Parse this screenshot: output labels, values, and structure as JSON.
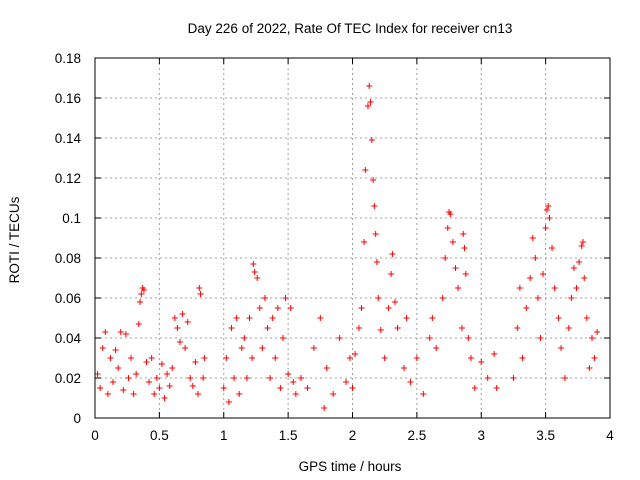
{
  "chart_data": {
    "type": "scatter",
    "title": "Day 226 of 2022, Rate Of TEC Index for receiver cn13",
    "xlabel": "GPS time / hours",
    "ylabel": "ROTI / TECUs",
    "xlim": [
      0,
      4
    ],
    "ylim": [
      0,
      0.18
    ],
    "x_ticks": [
      0,
      0.5,
      1,
      1.5,
      2,
      2.5,
      3,
      3.5,
      4
    ],
    "x_tick_labels": [
      "0",
      "0.5",
      "1",
      "1.5",
      "2",
      "2.5",
      "3",
      "3.5",
      "4"
    ],
    "y_ticks": [
      0,
      0.02,
      0.04,
      0.06,
      0.08,
      0.1,
      0.12,
      0.14,
      0.16,
      0.18
    ],
    "y_tick_labels": [
      "0",
      "0.02",
      "0.04",
      "0.06",
      "0.08",
      "0.1",
      "0.12",
      "0.14",
      "0.16",
      "0.18"
    ],
    "grid": true,
    "marker": "+",
    "color": "#ff0000",
    "series": [
      {
        "name": "ROTI",
        "points": [
          [
            0.02,
            0.022
          ],
          [
            0.04,
            0.015
          ],
          [
            0.06,
            0.035
          ],
          [
            0.08,
            0.043
          ],
          [
            0.1,
            0.012
          ],
          [
            0.12,
            0.03
          ],
          [
            0.14,
            0.018
          ],
          [
            0.16,
            0.034
          ],
          [
            0.18,
            0.025
          ],
          [
            0.2,
            0.043
          ],
          [
            0.22,
            0.014
          ],
          [
            0.24,
            0.042
          ],
          [
            0.26,
            0.02
          ],
          [
            0.28,
            0.03
          ],
          [
            0.3,
            0.012
          ],
          [
            0.32,
            0.022
          ],
          [
            0.34,
            0.047
          ],
          [
            0.35,
            0.058
          ],
          [
            0.36,
            0.062
          ],
          [
            0.37,
            0.065
          ],
          [
            0.38,
            0.064
          ],
          [
            0.4,
            0.028
          ],
          [
            0.42,
            0.018
          ],
          [
            0.44,
            0.03
          ],
          [
            0.46,
            0.012
          ],
          [
            0.48,
            0.02
          ],
          [
            0.5,
            0.015
          ],
          [
            0.52,
            0.027
          ],
          [
            0.54,
            0.01
          ],
          [
            0.56,
            0.022
          ],
          [
            0.58,
            0.016
          ],
          [
            0.6,
            0.025
          ],
          [
            0.62,
            0.05
          ],
          [
            0.64,
            0.045
          ],
          [
            0.66,
            0.038
          ],
          [
            0.68,
            0.052
          ],
          [
            0.7,
            0.035
          ],
          [
            0.72,
            0.048
          ],
          [
            0.74,
            0.02
          ],
          [
            0.76,
            0.016
          ],
          [
            0.78,
            0.028
          ],
          [
            0.8,
            0.012
          ],
          [
            0.81,
            0.065
          ],
          [
            0.82,
            0.062
          ],
          [
            0.84,
            0.02
          ],
          [
            0.85,
            0.03
          ],
          [
            1.0,
            0.015
          ],
          [
            1.02,
            0.03
          ],
          [
            1.04,
            0.008
          ],
          [
            1.06,
            0.045
          ],
          [
            1.08,
            0.02
          ],
          [
            1.1,
            0.05
          ],
          [
            1.12,
            0.012
          ],
          [
            1.14,
            0.035
          ],
          [
            1.16,
            0.04
          ],
          [
            1.18,
            0.02
          ],
          [
            1.2,
            0.05
          ],
          [
            1.22,
            0.03
          ],
          [
            1.23,
            0.077
          ],
          [
            1.24,
            0.073
          ],
          [
            1.26,
            0.07
          ],
          [
            1.28,
            0.055
          ],
          [
            1.3,
            0.035
          ],
          [
            1.32,
            0.06
          ],
          [
            1.34,
            0.045
          ],
          [
            1.36,
            0.02
          ],
          [
            1.38,
            0.05
          ],
          [
            1.4,
            0.03
          ],
          [
            1.42,
            0.055
          ],
          [
            1.44,
            0.015
          ],
          [
            1.46,
            0.04
          ],
          [
            1.48,
            0.06
          ],
          [
            1.5,
            0.022
          ],
          [
            1.52,
            0.055
          ],
          [
            1.54,
            0.018
          ],
          [
            1.56,
            0.012
          ],
          [
            1.6,
            0.02
          ],
          [
            1.65,
            0.015
          ],
          [
            1.7,
            0.035
          ],
          [
            1.75,
            0.05
          ],
          [
            1.78,
            0.005
          ],
          [
            1.8,
            0.025
          ],
          [
            1.85,
            0.012
          ],
          [
            1.9,
            0.04
          ],
          [
            1.95,
            0.018
          ],
          [
            1.98,
            0.03
          ],
          [
            2.0,
            0.015
          ],
          [
            2.02,
            0.032
          ],
          [
            2.05,
            0.045
          ],
          [
            2.07,
            0.055
          ],
          [
            2.09,
            0.088
          ],
          [
            2.1,
            0.124
          ],
          [
            2.12,
            0.156
          ],
          [
            2.13,
            0.166
          ],
          [
            2.14,
            0.158
          ],
          [
            2.15,
            0.139
          ],
          [
            2.16,
            0.119
          ],
          [
            2.17,
            0.106
          ],
          [
            2.18,
            0.092
          ],
          [
            2.19,
            0.078
          ],
          [
            2.2,
            0.06
          ],
          [
            2.22,
            0.044
          ],
          [
            2.25,
            0.03
          ],
          [
            2.28,
            0.055
          ],
          [
            2.3,
            0.072
          ],
          [
            2.31,
            0.082
          ],
          [
            2.33,
            0.058
          ],
          [
            2.35,
            0.045
          ],
          [
            2.4,
            0.025
          ],
          [
            2.42,
            0.05
          ],
          [
            2.45,
            0.018
          ],
          [
            2.5,
            0.03
          ],
          [
            2.55,
            0.012
          ],
          [
            2.6,
            0.04
          ],
          [
            2.62,
            0.05
          ],
          [
            2.65,
            0.035
          ],
          [
            2.7,
            0.06
          ],
          [
            2.72,
            0.08
          ],
          [
            2.74,
            0.095
          ],
          [
            2.75,
            0.103
          ],
          [
            2.76,
            0.102
          ],
          [
            2.78,
            0.088
          ],
          [
            2.8,
            0.075
          ],
          [
            2.82,
            0.065
          ],
          [
            2.85,
            0.045
          ],
          [
            2.86,
            0.092
          ],
          [
            2.87,
            0.085
          ],
          [
            2.88,
            0.072
          ],
          [
            2.9,
            0.04
          ],
          [
            2.92,
            0.03
          ],
          [
            2.95,
            0.015
          ],
          [
            3.0,
            0.028
          ],
          [
            3.05,
            0.02
          ],
          [
            3.1,
            0.032
          ],
          [
            3.12,
            0.015
          ],
          [
            3.25,
            0.02
          ],
          [
            3.28,
            0.045
          ],
          [
            3.3,
            0.065
          ],
          [
            3.32,
            0.03
          ],
          [
            3.35,
            0.055
          ],
          [
            3.38,
            0.07
          ],
          [
            3.4,
            0.09
          ],
          [
            3.42,
            0.08
          ],
          [
            3.44,
            0.06
          ],
          [
            3.46,
            0.04
          ],
          [
            3.48,
            0.072
          ],
          [
            3.5,
            0.095
          ],
          [
            3.51,
            0.104
          ],
          [
            3.52,
            0.106
          ],
          [
            3.53,
            0.1
          ],
          [
            3.55,
            0.085
          ],
          [
            3.57,
            0.065
          ],
          [
            3.6,
            0.05
          ],
          [
            3.62,
            0.035
          ],
          [
            3.65,
            0.02
          ],
          [
            3.68,
            0.045
          ],
          [
            3.7,
            0.06
          ],
          [
            3.72,
            0.075
          ],
          [
            3.74,
            0.065
          ],
          [
            3.76,
            0.078
          ],
          [
            3.78,
            0.086
          ],
          [
            3.79,
            0.088
          ],
          [
            3.8,
            0.07
          ],
          [
            3.82,
            0.05
          ],
          [
            3.84,
            0.025
          ],
          [
            3.86,
            0.04
          ],
          [
            3.88,
            0.03
          ],
          [
            3.9,
            0.043
          ]
        ]
      }
    ]
  }
}
